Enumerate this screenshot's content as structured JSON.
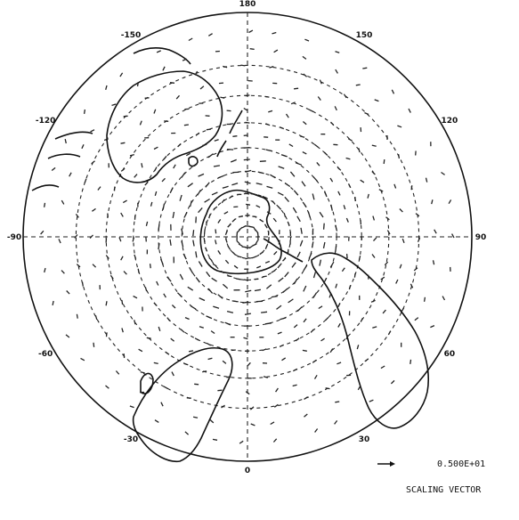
{
  "map": {
    "projection": "south polar stereographic",
    "longitude_labels": [
      {
        "text": "180",
        "lon": 180
      },
      {
        "text": "-150",
        "lon": -150
      },
      {
        "text": "-120",
        "lon": -120
      },
      {
        "text": "-90",
        "lon": -90
      },
      {
        "text": "-60",
        "lon": -60
      },
      {
        "text": "-30",
        "lon": -30
      },
      {
        "text": "0",
        "lon": 0
      },
      {
        "text": "30",
        "lon": 30
      },
      {
        "text": "60",
        "lon": 60
      },
      {
        "text": "90",
        "lon": 90
      },
      {
        "text": "120",
        "lon": 120
      },
      {
        "text": "150",
        "lon": 150
      }
    ],
    "latitude_circles": [
      -80,
      -70,
      -60,
      -50,
      -40,
      -30,
      -20
    ]
  },
  "legend": {
    "scaling_value": "0.500E+01",
    "scaling_title": "SCALING VECTOR"
  },
  "colors": {
    "ink": "#111111",
    "background": "#ffffff"
  }
}
